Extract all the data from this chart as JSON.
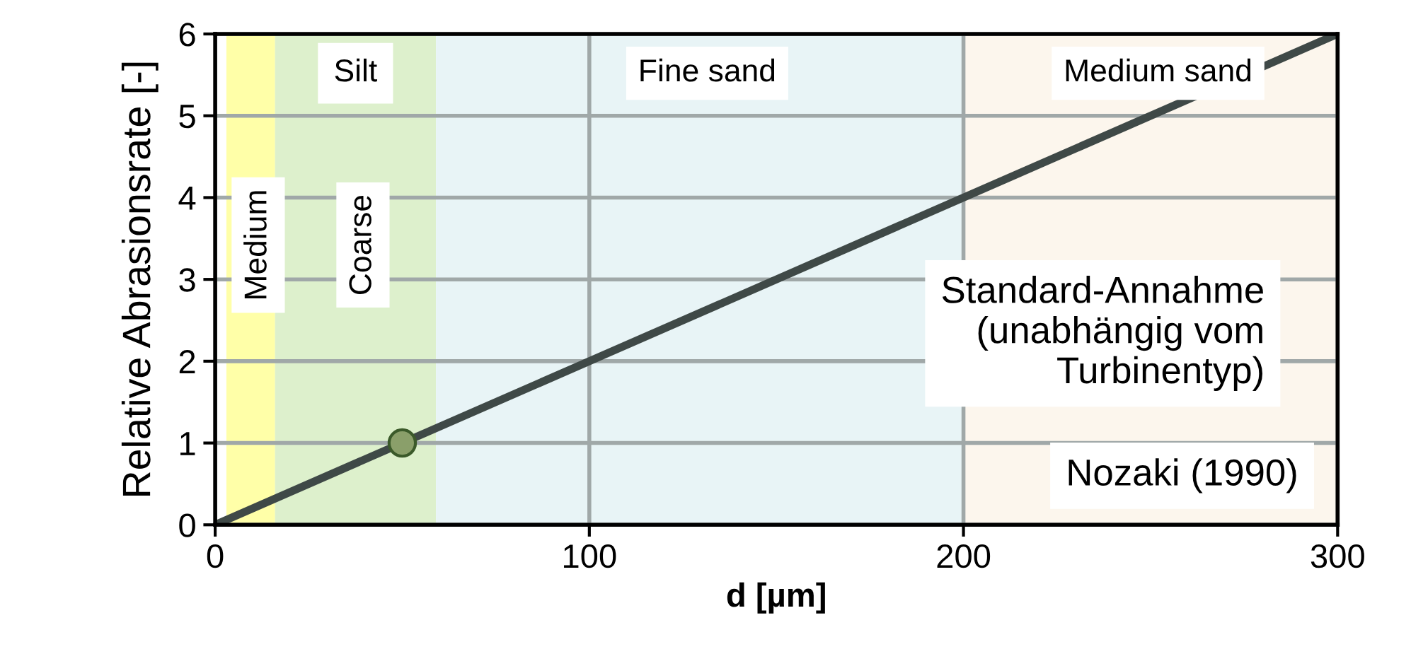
{
  "chart_data": {
    "type": "line",
    "xlabel": "d [µm]",
    "ylabel": "Relative Abrasionsrate [-]",
    "xlim": [
      0,
      300
    ],
    "ylim": [
      0,
      6
    ],
    "xticks": [
      0,
      100,
      200,
      300
    ],
    "yticks": [
      0,
      1,
      2,
      3,
      4,
      5,
      6
    ],
    "grid": true,
    "legend": false,
    "series": [
      {
        "x": [
          0,
          300
        ],
        "values": [
          0,
          6
        ],
        "color": "#3f4947",
        "marker": "none",
        "line_style": "solid"
      },
      {
        "type": "scatter",
        "x": [
          50
        ],
        "values": [
          1
        ],
        "color": "#8a9f6a",
        "marker": "circle"
      }
    ],
    "bands": [
      {
        "axis": "x",
        "from": 3,
        "to": 16,
        "label": "Medium",
        "color": "#ffff99"
      },
      {
        "axis": "x",
        "from": 16,
        "to": 59,
        "label": "Coarse",
        "color": "#d7edc3"
      },
      {
        "axis": "x",
        "from": 59,
        "to": 200,
        "label": "Fine sand",
        "color": "#e4f2f4"
      },
      {
        "axis": "x",
        "from": 200,
        "to": 300,
        "label": "Medium sand",
        "color": "#fbf4ea"
      }
    ],
    "annotations": [
      "Silt",
      "Standard-Annahme\n(unabhängig vom\nTurbinentyp)",
      "Nozaki (1990)"
    ]
  }
}
